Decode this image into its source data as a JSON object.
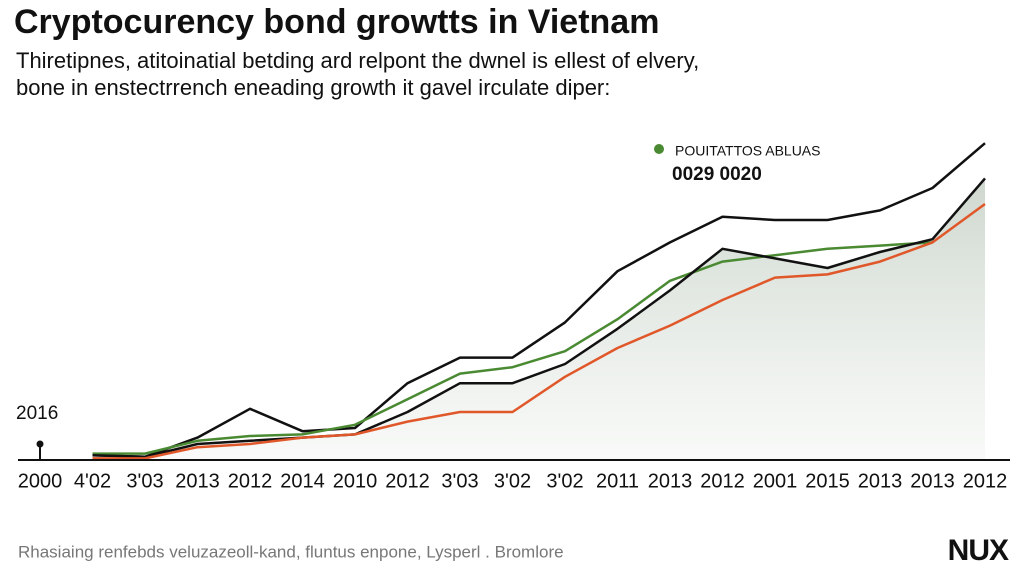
{
  "chart_data": {
    "type": "line",
    "title": "Cryptocurency bond growtts in Vietnam",
    "subtitle": [
      "Thiretipnes, atitoinatial betding ard relpont the dwnel is ellest of elvery,",
      "bone in enstectrrench eneading growth it gavel irculate diper:"
    ],
    "categories": [
      "2000",
      "4'02",
      "3'03",
      "2013",
      "2012",
      "2014",
      "2010",
      "2012",
      "3'03",
      "3'02",
      "3'02",
      "2011",
      "2013",
      "2012",
      "2001",
      "2015",
      "2013",
      "2013",
      "2012"
    ],
    "ylim": [
      0,
      100
    ],
    "series": [
      {
        "color": "#111111",
        "values": [
          null,
          1.5,
          1,
          7,
          16,
          9,
          10,
          24,
          32,
          32,
          43,
          59,
          68,
          76,
          75,
          75,
          78,
          85,
          99
        ]
      },
      {
        "name": "POUITATTOS ABLUAS",
        "color": "#4a8a32",
        "values": [
          null,
          2,
          2,
          6,
          7.5,
          8,
          11,
          19,
          27,
          29,
          34,
          44,
          56,
          62,
          64,
          66,
          67,
          68,
          null
        ]
      },
      {
        "color": "#111111",
        "area_color": "#dfe5df",
        "values": [
          null,
          1.5,
          1,
          5,
          6,
          7,
          8,
          15,
          24,
          24,
          30,
          41,
          53,
          66,
          63,
          60,
          65,
          69,
          88
        ]
      },
      {
        "color": "#e0582a",
        "values": [
          null,
          0.5,
          0.5,
          4,
          5,
          7,
          8,
          12,
          15,
          15,
          26,
          35,
          42,
          50,
          57,
          58,
          62,
          68,
          80
        ]
      }
    ],
    "annotations": [
      "0029 0020",
      "2016"
    ],
    "footer": "Rhasiaing renfebds veluzazeoll-kand, fluntus enpone, Lysperl . Bromlore",
    "logo": "NUX"
  }
}
